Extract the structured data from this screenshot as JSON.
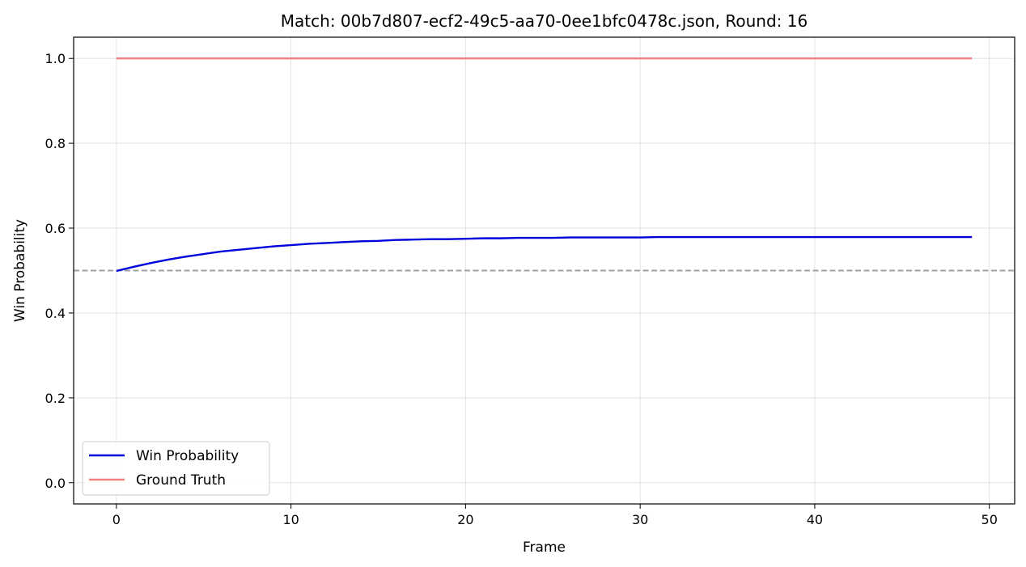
{
  "chart_data": {
    "type": "line",
    "title": "Match: 00b7d807-ecf2-49c5-aa70-0ee1bfc0478c.json, Round: 16",
    "xlabel": "Frame",
    "ylabel": "Win Probability",
    "xlim": [
      -2.45,
      51.45
    ],
    "ylim": [
      -0.05,
      1.05
    ],
    "xticks": [
      0,
      10,
      20,
      30,
      40,
      50
    ],
    "yticks": [
      0.0,
      0.2,
      0.4,
      0.6,
      0.8,
      1.0
    ],
    "xtick_labels": [
      "0",
      "10",
      "20",
      "30",
      "40",
      "50"
    ],
    "ytick_labels": [
      "0.0",
      "0.2",
      "0.4",
      "0.6",
      "0.8",
      "1.0"
    ],
    "grid": true,
    "legend_position": "lower-left",
    "reference_line": {
      "y": 0.5,
      "color": "#a0a0a0",
      "style": "dashed"
    },
    "series": [
      {
        "name": "Win Probability",
        "color": "#0000dd",
        "x": [
          0,
          1,
          2,
          3,
          4,
          5,
          6,
          7,
          8,
          9,
          10,
          11,
          12,
          13,
          14,
          15,
          16,
          17,
          18,
          19,
          20,
          21,
          22,
          23,
          24,
          25,
          26,
          27,
          28,
          29,
          30,
          31,
          32,
          33,
          34,
          35,
          36,
          37,
          38,
          39,
          40,
          41,
          42,
          43,
          44,
          45,
          46,
          47,
          48,
          49
        ],
        "y": [
          0.499,
          0.509,
          0.518,
          0.526,
          0.533,
          0.539,
          0.545,
          0.549,
          0.553,
          0.557,
          0.56,
          0.563,
          0.565,
          0.567,
          0.569,
          0.57,
          0.572,
          0.573,
          0.574,
          0.574,
          0.575,
          0.576,
          0.576,
          0.577,
          0.577,
          0.577,
          0.578,
          0.578,
          0.578,
          0.578,
          0.578,
          0.579,
          0.579,
          0.579,
          0.579,
          0.579,
          0.579,
          0.579,
          0.579,
          0.579,
          0.579,
          0.579,
          0.579,
          0.579,
          0.579,
          0.579,
          0.579,
          0.579,
          0.579,
          0.579
        ]
      },
      {
        "name": "Ground Truth",
        "color": "#f08080",
        "x": [
          0,
          49
        ],
        "y": [
          1.0,
          1.0
        ]
      }
    ]
  }
}
